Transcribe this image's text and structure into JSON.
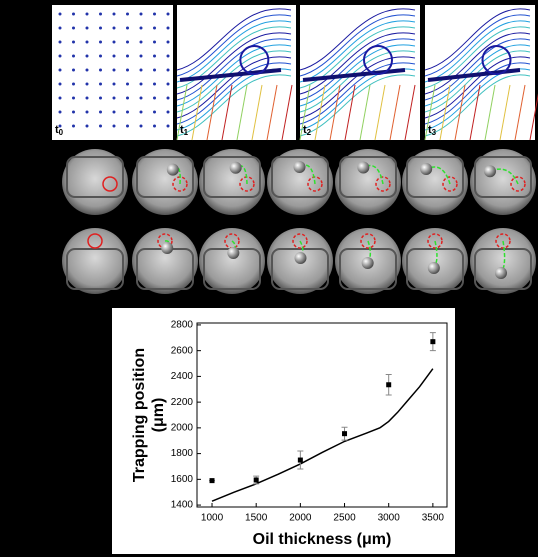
{
  "panels": [
    {
      "text": "t",
      "sub": "0"
    },
    {
      "text": "t",
      "sub": "1"
    },
    {
      "text": "t",
      "sub": "2"
    },
    {
      "text": "t",
      "sub": "3"
    }
  ],
  "chart_data": {
    "type": "scatter",
    "xlabel": "Oil thickness (μm)",
    "ylabel": [
      "Trapping position",
      "(μm)"
    ],
    "x": [
      1000,
      1500,
      2000,
      2500,
      3000,
      3500
    ],
    "values": [
      1590,
      1595,
      1750,
      1955,
      2335,
      2670
    ],
    "errors": [
      0,
      30,
      70,
      50,
      80,
      70
    ],
    "fit_x": [
      1000,
      1250,
      1500,
      1750,
      2000,
      2250,
      2500,
      2750,
      2900,
      3000,
      3100,
      3200,
      3350,
      3500
    ],
    "fit_y": [
      1430,
      1500,
      1565,
      1640,
      1720,
      1810,
      1895,
      1960,
      2000,
      2050,
      2120,
      2200,
      2320,
      2460
    ],
    "color": "#000000",
    "xlim": [
      830,
      3660
    ],
    "ylim": [
      1385,
      2815
    ],
    "xticks": [
      1000,
      1500,
      2000,
      2500,
      3000,
      3500
    ],
    "yticks": [
      1400,
      1600,
      1800,
      2000,
      2200,
      2400,
      2600,
      2800
    ]
  }
}
